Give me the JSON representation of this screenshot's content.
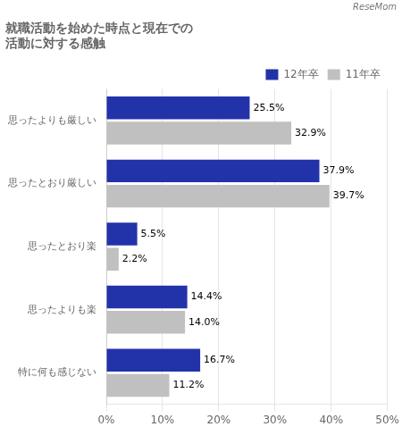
{
  "chart_data": {
    "type": "bar",
    "orientation": "horizontal",
    "title": [
      "就職活動を始めた時点と現在での",
      "活動に対する感触"
    ],
    "annotations": [
      "ReseMom"
    ],
    "categories": [
      "思ったよりも厳しい",
      "思ったとおり厳しい",
      "思ったとおり楽",
      "思ったよりも楽",
      "特に何も感じない"
    ],
    "series": [
      {
        "name": "12年卒",
        "color": "#2233aa",
        "values": [
          25.5,
          37.9,
          5.5,
          14.4,
          16.7
        ],
        "value_labels": [
          "25.5%",
          "37.9%",
          "5.5%",
          "14.4%",
          "16.7%"
        ]
      },
      {
        "name": "11年卒",
        "color": "#c0c0c0",
        "values": [
          32.9,
          39.7,
          2.2,
          14.0,
          11.2
        ],
        "value_labels": [
          "32.9%",
          "39.7%",
          "2.2%",
          "14.0%",
          "11.2%"
        ]
      }
    ],
    "xlim": [
      0,
      50
    ],
    "xticks": [
      {
        "value": 0,
        "label": "0%"
      },
      {
        "value": 10,
        "label": "10%"
      },
      {
        "value": 20,
        "label": "20%"
      },
      {
        "value": 30,
        "label": "30%"
      },
      {
        "value": 40,
        "label": "40%"
      },
      {
        "value": 50,
        "label": "50%"
      }
    ],
    "grid": true,
    "legend": "upper right",
    "data_labels": true
  }
}
